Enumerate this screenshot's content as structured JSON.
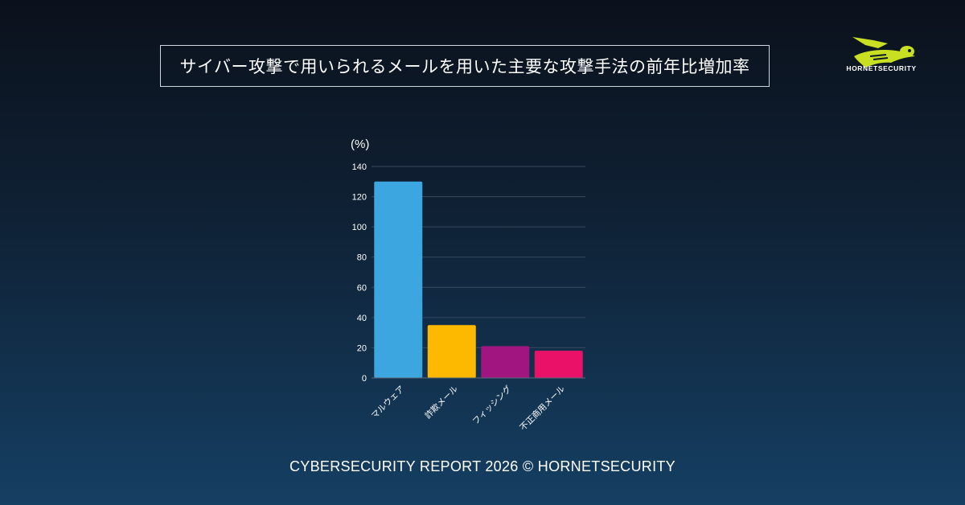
{
  "title": "サイバー攻撃で用いられるメールを用いた主要な攻撃手法の前年比増加率",
  "logo": {
    "text": "HORNETSECURITY",
    "icon": "hornet-logo-icon",
    "color": "#c8e021"
  },
  "footer": "CYBERSECURITY REPORT 2026 © HORNETSECURITY",
  "chart_data": {
    "type": "bar",
    "title": "",
    "ylabel": "(%)",
    "xlabel": "",
    "ylim": [
      0,
      140
    ],
    "yticks": [
      0,
      20,
      40,
      60,
      80,
      100,
      120,
      140
    ],
    "grid": true,
    "categories": [
      "マルウェア",
      "詐欺メール",
      "フィッシング",
      "不正商用メール"
    ],
    "values": [
      130,
      35,
      21,
      18
    ],
    "colors": [
      "#3ba6e0",
      "#fcb900",
      "#a0157f",
      "#ea1268"
    ]
  }
}
